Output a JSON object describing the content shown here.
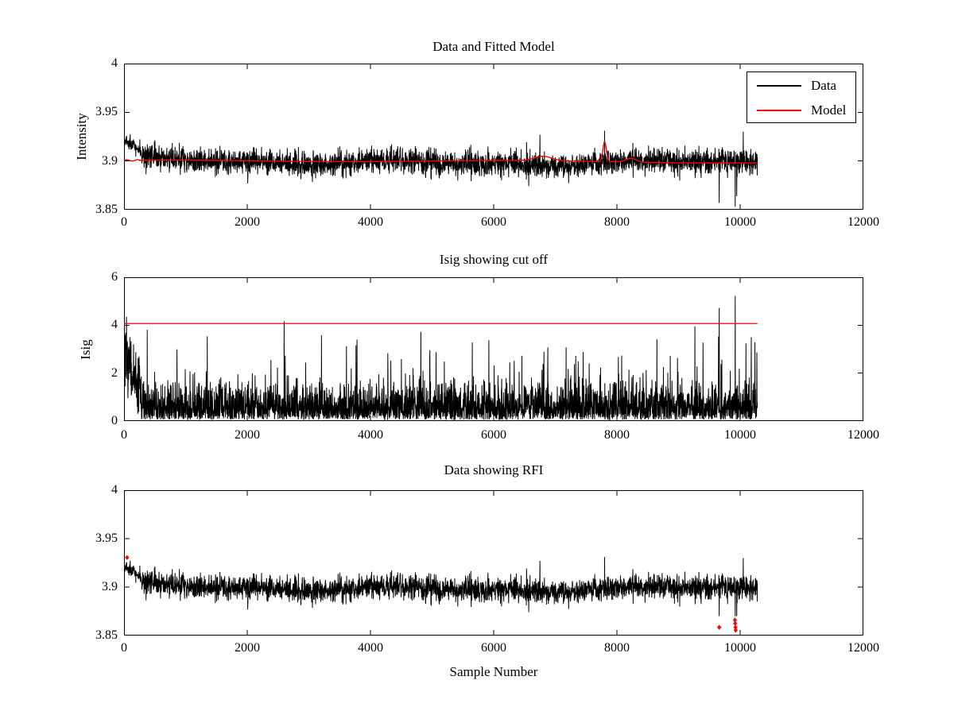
{
  "xlabel": "Sample Number",
  "chart_data": [
    {
      "type": "line",
      "title": "Data and Fitted Model",
      "ylabel": "Intensity",
      "xlabel": "",
      "xlim": [
        0,
        12000
      ],
      "ylim": [
        3.85,
        4
      ],
      "xtick_vals": [
        0,
        2000,
        4000,
        6000,
        8000,
        10000,
        12000
      ],
      "xticks": [
        "0",
        "2000",
        "4000",
        "6000",
        "8000",
        "10000",
        "12000"
      ],
      "ytick_vals": [
        3.85,
        3.9,
        3.95,
        4
      ],
      "yticks": [
        "3.85",
        "3.9",
        "3.95",
        "4"
      ],
      "grid": false,
      "legend": {
        "position": "northeast",
        "entries": [
          {
            "label": "Data",
            "color": "#000000"
          },
          {
            "label": "Model",
            "color": "#ff0000"
          }
        ]
      },
      "series": [
        {
          "name": "Data",
          "color": "#000000",
          "kind": "intensity_noise",
          "seed": 42,
          "n_points": 3400,
          "x_end": 10280,
          "start_segment": {
            "x_end": 280,
            "level_start": 3.9195,
            "level_end": 3.908,
            "noise_sd": 0.0035
          },
          "main_segment": {
            "level": 3.8995,
            "noise_sd": 0.0063,
            "wander_amp": 0.002
          },
          "spikes": [
            [
              6750,
              3.927
            ],
            [
              7800,
              3.931
            ],
            [
              9660,
              3.857
            ],
            [
              9920,
              3.853
            ],
            [
              9945,
              3.864
            ],
            [
              10050,
              3.93
            ]
          ]
        },
        {
          "name": "Model",
          "color": "#ff0000",
          "kind": "smooth_model",
          "n_points": 700,
          "x_end": 10280,
          "base": 3.8995,
          "bumps": [
            [
              6800,
              140,
              0.0045
            ],
            [
              7800,
              28,
              0.0205
            ],
            [
              8230,
              80,
              0.004
            ]
          ]
        }
      ]
    },
    {
      "type": "line",
      "title": "Isig showing cut off",
      "ylabel": "Isig",
      "xlabel": "",
      "xlim": [
        0,
        12000
      ],
      "ylim": [
        0,
        6
      ],
      "xtick_vals": [
        0,
        2000,
        4000,
        6000,
        8000,
        10000,
        12000
      ],
      "xticks": [
        "0",
        "2000",
        "4000",
        "6000",
        "8000",
        "10000",
        "12000"
      ],
      "ytick_vals": [
        0,
        2,
        4,
        6
      ],
      "yticks": [
        "0",
        "2",
        "4",
        "6"
      ],
      "grid": false,
      "series": [
        {
          "name": "Isig",
          "color": "#000000",
          "kind": "isig_noise",
          "seed": 7,
          "n_points": 3600,
          "x_end": 10280,
          "start_segment": {
            "x_end": 280,
            "level_start": 2.5,
            "level_end": 1.2,
            "noise_sd": 0.6
          },
          "main_segment": {
            "floor": 0.05,
            "noise_sd": 0.72,
            "spike_prob": 0.02
          },
          "spikes": [
            [
              40,
              4.35
            ],
            [
              2600,
              4.17
            ],
            [
              9660,
              4.72
            ],
            [
              9920,
              5.22
            ],
            [
              10180,
              3.5
            ],
            [
              10240,
              3.28
            ]
          ]
        },
        {
          "name": "Cut off",
          "color": "#ff0000",
          "kind": "hline",
          "y": 4.07,
          "x_start": 0,
          "x_end": 10280
        }
      ]
    },
    {
      "type": "line",
      "title": "Data showing RFI",
      "ylabel": "",
      "xlabel": "Sample Number",
      "xlim": [
        0,
        12000
      ],
      "ylim": [
        3.85,
        4
      ],
      "xtick_vals": [
        0,
        2000,
        4000,
        6000,
        8000,
        10000,
        12000
      ],
      "xticks": [
        "0",
        "2000",
        "4000",
        "6000",
        "8000",
        "10000",
        "12000"
      ],
      "ytick_vals": [
        3.85,
        3.9,
        3.95,
        4
      ],
      "yticks": [
        "3.85",
        "3.9",
        "3.95",
        "4"
      ],
      "grid": false,
      "series": [
        {
          "name": "Data",
          "color": "#000000",
          "kind": "intensity_noise",
          "seed": 42,
          "n_points": 3400,
          "x_end": 10280,
          "clip_min": 3.87,
          "start_segment": {
            "x_end": 280,
            "level_start": 3.9195,
            "level_end": 3.908,
            "noise_sd": 0.0035
          },
          "main_segment": {
            "level": 3.8995,
            "noise_sd": 0.0063,
            "wander_amp": 0.002
          },
          "spikes": [
            [
              6750,
              3.927
            ],
            [
              7800,
              3.931
            ],
            [
              9660,
              3.857
            ],
            [
              9920,
              3.853
            ],
            [
              9945,
              3.864
            ],
            [
              10050,
              3.93
            ]
          ]
        },
        {
          "name": "RFI points",
          "color": "#ff0000",
          "kind": "markers",
          "marker": "diamond",
          "points": [
            [
              50,
              3.9305
            ],
            [
              9660,
              3.8585
            ],
            [
              9915,
              3.866
            ],
            [
              9919,
              3.8625
            ],
            [
              9923,
              3.8585
            ],
            [
              9927,
              3.8555
            ]
          ]
        }
      ]
    }
  ]
}
